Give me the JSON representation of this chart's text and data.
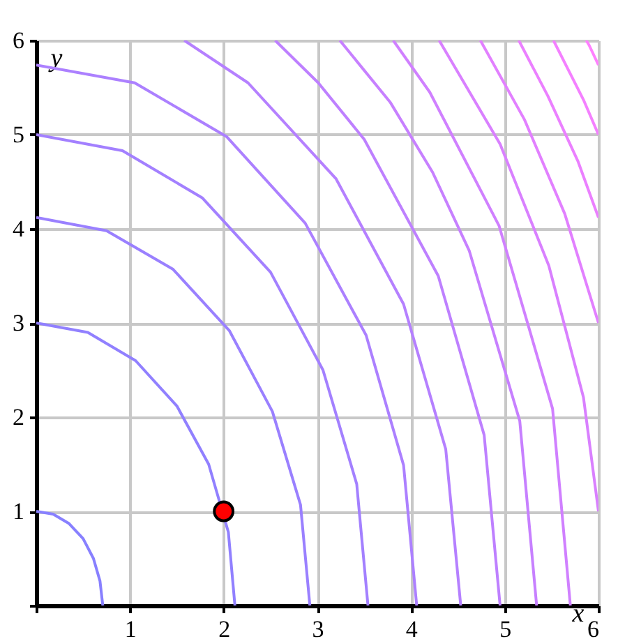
{
  "chart_data": {
    "type": "line",
    "xlabel": "x",
    "ylabel": "y",
    "xlim": [
      0,
      6
    ],
    "ylim": [
      0,
      6
    ],
    "xticks": [
      {
        "value": 0,
        "label": null
      },
      1,
      2,
      3,
      4,
      5,
      6
    ],
    "yticks": [
      {
        "value": 0,
        "label": null
      },
      1,
      2,
      3,
      4,
      5,
      6
    ],
    "grid": true,
    "series": [
      {
        "color": "#8880ff",
        "x": [
          0.71,
          0.68,
          0.61,
          0.5,
          0.35,
          0.18,
          0
        ],
        "values": [
          0,
          0.26,
          0.5,
          0.71,
          0.87,
          0.97,
          1
        ]
      },
      {
        "color": "#9180ff",
        "x": [
          2.12,
          2.05,
          1.84,
          1.5,
          1.06,
          0.55,
          0
        ],
        "values": [
          0,
          0.78,
          1.5,
          2.12,
          2.6,
          2.9,
          3
        ]
      },
      {
        "color": "#9a80ff",
        "x": [
          2.92,
          2.82,
          2.52,
          2.06,
          1.46,
          0.75,
          0
        ],
        "values": [
          0,
          1.07,
          2.06,
          2.92,
          3.57,
          3.98,
          4.12
        ]
      },
      {
        "color": "#a380ff",
        "x": [
          3.54,
          3.42,
          3.06,
          2.5,
          1.77,
          0.92,
          0
        ],
        "values": [
          0,
          1.29,
          2.5,
          3.54,
          4.33,
          4.83,
          5
        ]
      },
      {
        "color": "#ac80ff",
        "x": [
          4.06,
          3.92,
          3.52,
          2.87,
          2.03,
          1.05,
          0
        ],
        "values": [
          0,
          1.49,
          2.87,
          4.06,
          4.98,
          5.55,
          5.74
        ]
      },
      {
        "color": "#b580ff",
        "x": [
          4.53,
          4.37,
          3.92,
          3.2,
          2.26,
          1.58
        ],
        "values": [
          0,
          1.66,
          3.2,
          4.53,
          5.55,
          6
        ]
      },
      {
        "color": "#be80ff",
        "x": [
          4.95,
          4.78,
          4.29,
          3.5,
          3.01,
          2.55
        ],
        "values": [
          0,
          1.81,
          3.5,
          4.95,
          5.55,
          6
        ]
      },
      {
        "color": "#c780ff",
        "x": [
          5.34,
          5.16,
          4.62,
          4.23,
          3.78,
          3.24
        ],
        "values": [
          0,
          1.96,
          3.77,
          4.6,
          5.34,
          6
        ]
      },
      {
        "color": "#d080ff",
        "x": [
          5.7,
          5.51,
          4.94,
          4.2,
          3.81
        ],
        "values": [
          0,
          2.09,
          4.03,
          5.45,
          6
        ]
      },
      {
        "color": "#d980ff",
        "x": [
          6,
          5.84,
          5.47,
          4.95,
          4.3
        ],
        "values": [
          1,
          2.21,
          3.61,
          4.9,
          6
        ]
      },
      {
        "color": "#e280ff",
        "x": [
          6,
          5.64,
          5.21,
          4.74
        ],
        "values": [
          3,
          4.16,
          5.16,
          6
        ]
      },
      {
        "color": "#eb80ff",
        "x": [
          6,
          5.78,
          5.46,
          5.15
        ],
        "values": [
          4.12,
          4.72,
          5.41,
          6
        ]
      },
      {
        "color": "#f480ff",
        "x": [
          6,
          5.84,
          5.52
        ],
        "values": [
          5,
          5.37,
          6
        ]
      },
      {
        "color": "#ff80ff",
        "x": [
          6,
          5.9,
          5.87
        ],
        "values": [
          5.74,
          5.95,
          6
        ]
      },
      {
        "type": "scatter",
        "color": "#ff0000",
        "x": [
          2
        ],
        "values": [
          1
        ]
      }
    ]
  }
}
